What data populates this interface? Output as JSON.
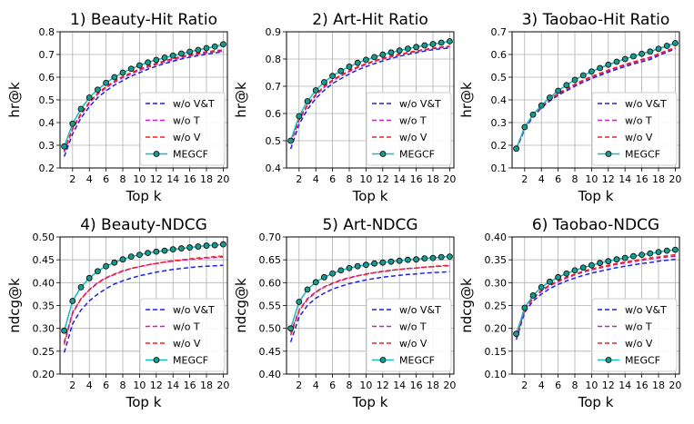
{
  "chart_data": [
    {
      "type": "line",
      "title": "1) Beauty-Hit Ratio",
      "xlabel": "Top k",
      "ylabel": "hr@k",
      "ylim": [
        0.2,
        0.8
      ],
      "yticks": [
        "0.2",
        "0.3",
        "0.4",
        "0.5",
        "0.6",
        "0.7",
        "0.8"
      ],
      "xticks": [
        "2",
        "4",
        "6",
        "8",
        "10",
        "12",
        "14",
        "16",
        "18",
        "20"
      ],
      "x": [
        1,
        2,
        3,
        4,
        5,
        6,
        7,
        8,
        9,
        10,
        11,
        12,
        13,
        14,
        15,
        16,
        17,
        18,
        19,
        20
      ],
      "legend_position": "lower-right",
      "series": [
        {
          "name": "w/o V&T",
          "color": "#1f1fe0",
          "style": "dashed",
          "values": [
            0.25,
            0.35,
            0.42,
            0.47,
            0.51,
            0.54,
            0.565,
            0.585,
            0.605,
            0.62,
            0.635,
            0.648,
            0.66,
            0.67,
            0.68,
            0.688,
            0.695,
            0.701,
            0.707,
            0.712
          ]
        },
        {
          "name": "w/o T",
          "color": "#c020c0",
          "style": "dashed",
          "values": [
            0.27,
            0.37,
            0.435,
            0.485,
            0.525,
            0.553,
            0.577,
            0.598,
            0.615,
            0.63,
            0.644,
            0.656,
            0.667,
            0.677,
            0.686,
            0.694,
            0.701,
            0.707,
            0.712,
            0.715
          ]
        },
        {
          "name": "w/o V",
          "color": "#ee2020",
          "style": "dashed",
          "values": [
            0.275,
            0.375,
            0.44,
            0.49,
            0.53,
            0.558,
            0.582,
            0.603,
            0.62,
            0.635,
            0.649,
            0.661,
            0.672,
            0.682,
            0.691,
            0.699,
            0.706,
            0.712,
            0.717,
            0.72
          ]
        },
        {
          "name": "MEGCF",
          "color": "#17bcbc",
          "style": "solid-marker",
          "values": [
            0.295,
            0.395,
            0.46,
            0.51,
            0.545,
            0.575,
            0.6,
            0.62,
            0.637,
            0.652,
            0.665,
            0.676,
            0.686,
            0.695,
            0.704,
            0.712,
            0.72,
            0.728,
            0.735,
            0.745
          ]
        }
      ]
    },
    {
      "type": "line",
      "title": "2) Art-Hit Ratio",
      "xlabel": "Top k",
      "ylabel": "hr@k",
      "ylim": [
        0.4,
        0.9
      ],
      "yticks": [
        "0.4",
        "0.5",
        "0.6",
        "0.7",
        "0.8",
        "0.9"
      ],
      "xticks": [
        "2",
        "4",
        "6",
        "8",
        "10",
        "12",
        "14",
        "16",
        "18",
        "20"
      ],
      "x": [
        1,
        2,
        3,
        4,
        5,
        6,
        7,
        8,
        9,
        10,
        11,
        12,
        13,
        14,
        15,
        16,
        17,
        18,
        19,
        20
      ],
      "legend_position": "lower-right",
      "series": [
        {
          "name": "w/o V&T",
          "color": "#1f1fe0",
          "style": "dashed",
          "values": [
            0.47,
            0.56,
            0.615,
            0.655,
            0.685,
            0.71,
            0.728,
            0.745,
            0.76,
            0.772,
            0.783,
            0.793,
            0.802,
            0.81,
            0.817,
            0.823,
            0.829,
            0.834,
            0.838,
            0.84
          ]
        },
        {
          "name": "w/o T",
          "color": "#c020c0",
          "style": "dashed",
          "values": [
            0.49,
            0.575,
            0.628,
            0.666,
            0.696,
            0.72,
            0.738,
            0.754,
            0.768,
            0.78,
            0.791,
            0.8,
            0.808,
            0.815,
            0.822,
            0.828,
            0.833,
            0.838,
            0.842,
            0.845
          ]
        },
        {
          "name": "w/o V",
          "color": "#ee2020",
          "style": "dashed",
          "values": [
            0.495,
            0.58,
            0.632,
            0.67,
            0.7,
            0.723,
            0.741,
            0.757,
            0.771,
            0.783,
            0.793,
            0.802,
            0.81,
            0.818,
            0.824,
            0.83,
            0.835,
            0.84,
            0.844,
            0.847
          ]
        },
        {
          "name": "MEGCF",
          "color": "#17bcbc",
          "style": "solid-marker",
          "values": [
            0.5,
            0.59,
            0.645,
            0.685,
            0.715,
            0.738,
            0.756,
            0.772,
            0.786,
            0.797,
            0.807,
            0.816,
            0.824,
            0.831,
            0.838,
            0.844,
            0.85,
            0.855,
            0.86,
            0.865
          ]
        }
      ]
    },
    {
      "type": "line",
      "title": "3) Taobao-Hit Ratio",
      "xlabel": "Top k",
      "ylabel": "hr@k",
      "ylim": [
        0.1,
        0.7
      ],
      "yticks": [
        "0.1",
        "0.2",
        "0.3",
        "0.4",
        "0.5",
        "0.6",
        "0.7"
      ],
      "xticks": [
        "2",
        "4",
        "6",
        "8",
        "10",
        "12",
        "14",
        "16",
        "18",
        "20"
      ],
      "x": [
        1,
        2,
        3,
        4,
        5,
        6,
        7,
        8,
        9,
        10,
        11,
        12,
        13,
        14,
        15,
        16,
        17,
        18,
        19,
        20
      ],
      "legend_position": "lower-right",
      "series": [
        {
          "name": "w/o V&T",
          "color": "#1f1fe0",
          "style": "dashed",
          "values": [
            0.18,
            0.27,
            0.325,
            0.365,
            0.395,
            0.42,
            0.44,
            0.46,
            0.478,
            0.494,
            0.508,
            0.522,
            0.535,
            0.547,
            0.558,
            0.568,
            0.578,
            0.595,
            0.61,
            0.625
          ]
        },
        {
          "name": "w/o T",
          "color": "#c020c0",
          "style": "dashed",
          "values": [
            0.185,
            0.275,
            0.33,
            0.37,
            0.4,
            0.425,
            0.446,
            0.466,
            0.484,
            0.5,
            0.514,
            0.528,
            0.541,
            0.553,
            0.564,
            0.575,
            0.585,
            0.6,
            0.615,
            0.628
          ]
        },
        {
          "name": "w/o V",
          "color": "#ee2020",
          "style": "dashed",
          "values": [
            0.185,
            0.277,
            0.332,
            0.372,
            0.403,
            0.428,
            0.449,
            0.469,
            0.487,
            0.503,
            0.517,
            0.531,
            0.544,
            0.556,
            0.567,
            0.578,
            0.588,
            0.603,
            0.618,
            0.63
          ]
        },
        {
          "name": "MEGCF",
          "color": "#17bcbc",
          "style": "solid-marker",
          "values": [
            0.185,
            0.28,
            0.335,
            0.375,
            0.41,
            0.44,
            0.465,
            0.488,
            0.508,
            0.525,
            0.54,
            0.555,
            0.568,
            0.58,
            0.592,
            0.603,
            0.613,
            0.625,
            0.638,
            0.65
          ]
        }
      ]
    },
    {
      "type": "line",
      "title": "4) Beauty-NDCG",
      "xlabel": "Top k",
      "ylabel": "ndcg@k",
      "ylim": [
        0.2,
        0.5
      ],
      "yticks": [
        "0.20",
        "0.25",
        "0.30",
        "0.35",
        "0.40",
        "0.45",
        "0.50"
      ],
      "xticks": [
        "2",
        "4",
        "6",
        "8",
        "10",
        "12",
        "14",
        "16",
        "18",
        "20"
      ],
      "x": [
        1,
        2,
        3,
        4,
        5,
        6,
        7,
        8,
        9,
        10,
        11,
        12,
        13,
        14,
        15,
        16,
        17,
        18,
        19,
        20
      ],
      "legend_position": "lower-right",
      "series": [
        {
          "name": "w/o V&T",
          "color": "#1f1fe0",
          "style": "dashed",
          "values": [
            0.247,
            0.31,
            0.34,
            0.36,
            0.375,
            0.387,
            0.397,
            0.404,
            0.41,
            0.415,
            0.419,
            0.423,
            0.426,
            0.429,
            0.431,
            0.433,
            0.435,
            0.436,
            0.437,
            0.438
          ]
        },
        {
          "name": "w/o T",
          "color": "#c020c0",
          "style": "dashed",
          "values": [
            0.27,
            0.335,
            0.365,
            0.385,
            0.4,
            0.411,
            0.419,
            0.426,
            0.431,
            0.435,
            0.439,
            0.442,
            0.445,
            0.447,
            0.449,
            0.451,
            0.452,
            0.454,
            0.455,
            0.456
          ]
        },
        {
          "name": "w/o V",
          "color": "#ee2020",
          "style": "dashed",
          "values": [
            0.265,
            0.333,
            0.364,
            0.384,
            0.399,
            0.41,
            0.418,
            0.425,
            0.431,
            0.435,
            0.439,
            0.442,
            0.445,
            0.448,
            0.45,
            0.452,
            0.454,
            0.455,
            0.457,
            0.458
          ]
        },
        {
          "name": "MEGCF",
          "color": "#17bcbc",
          "style": "solid-marker",
          "values": [
            0.295,
            0.36,
            0.39,
            0.41,
            0.425,
            0.436,
            0.444,
            0.451,
            0.457,
            0.461,
            0.465,
            0.468,
            0.47,
            0.473,
            0.475,
            0.477,
            0.479,
            0.481,
            0.482,
            0.484
          ]
        }
      ]
    },
    {
      "type": "line",
      "title": "5) Art-NDCG",
      "xlabel": "Top k",
      "ylabel": "ndcg@k",
      "ylim": [
        0.4,
        0.7
      ],
      "yticks": [
        "0.40",
        "0.45",
        "0.50",
        "0.55",
        "0.60",
        "0.65",
        "0.70"
      ],
      "xticks": [
        "2",
        "4",
        "6",
        "8",
        "10",
        "12",
        "14",
        "16",
        "18",
        "20"
      ],
      "x": [
        1,
        2,
        3,
        4,
        5,
        6,
        7,
        8,
        9,
        10,
        11,
        12,
        13,
        14,
        15,
        16,
        17,
        18,
        19,
        20
      ],
      "legend_position": "lower-right",
      "series": [
        {
          "name": "w/o V&T",
          "color": "#1f1fe0",
          "style": "dashed",
          "values": [
            0.47,
            0.525,
            0.55,
            0.566,
            0.577,
            0.586,
            0.592,
            0.598,
            0.602,
            0.606,
            0.609,
            0.612,
            0.614,
            0.616,
            0.618,
            0.619,
            0.621,
            0.622,
            0.623,
            0.624
          ]
        },
        {
          "name": "w/o T",
          "color": "#c020c0",
          "style": "dashed",
          "values": [
            0.49,
            0.54,
            0.565,
            0.58,
            0.591,
            0.599,
            0.606,
            0.611,
            0.615,
            0.619,
            0.622,
            0.625,
            0.627,
            0.629,
            0.631,
            0.632,
            0.634,
            0.635,
            0.636,
            0.637
          ]
        },
        {
          "name": "w/o V",
          "color": "#ee2020",
          "style": "dashed",
          "values": [
            0.485,
            0.538,
            0.563,
            0.579,
            0.59,
            0.598,
            0.605,
            0.61,
            0.615,
            0.618,
            0.622,
            0.624,
            0.627,
            0.629,
            0.631,
            0.632,
            0.634,
            0.635,
            0.637,
            0.638
          ]
        },
        {
          "name": "MEGCF",
          "color": "#17bcbc",
          "style": "solid-marker",
          "values": [
            0.5,
            0.558,
            0.585,
            0.601,
            0.612,
            0.62,
            0.627,
            0.632,
            0.636,
            0.639,
            0.642,
            0.644,
            0.646,
            0.648,
            0.65,
            0.651,
            0.653,
            0.654,
            0.656,
            0.657
          ]
        }
      ]
    },
    {
      "type": "line",
      "title": "6) Taobao-NDCG",
      "xlabel": "Top k",
      "ylabel": "ndcg@k",
      "ylim": [
        0.1,
        0.4
      ],
      "yticks": [
        "0.10",
        "0.15",
        "0.20",
        "0.25",
        "0.30",
        "0.35",
        "0.40"
      ],
      "xticks": [
        "2",
        "4",
        "6",
        "8",
        "10",
        "12",
        "14",
        "16",
        "18",
        "20"
      ],
      "x": [
        1,
        2,
        3,
        4,
        5,
        6,
        7,
        8,
        9,
        10,
        11,
        12,
        13,
        14,
        15,
        16,
        17,
        18,
        19,
        20
      ],
      "legend_position": "lower-right",
      "series": [
        {
          "name": "w/o V&T",
          "color": "#1f1fe0",
          "style": "dashed",
          "values": [
            0.175,
            0.235,
            0.26,
            0.275,
            0.287,
            0.296,
            0.304,
            0.31,
            0.316,
            0.321,
            0.325,
            0.329,
            0.333,
            0.336,
            0.339,
            0.342,
            0.344,
            0.347,
            0.349,
            0.351
          ]
        },
        {
          "name": "w/o T",
          "color": "#c020c0",
          "style": "dashed",
          "values": [
            0.18,
            0.24,
            0.265,
            0.281,
            0.293,
            0.302,
            0.31,
            0.317,
            0.323,
            0.328,
            0.332,
            0.336,
            0.34,
            0.343,
            0.346,
            0.349,
            0.352,
            0.354,
            0.356,
            0.358
          ]
        },
        {
          "name": "w/o V",
          "color": "#ee2020",
          "style": "dashed",
          "values": [
            0.182,
            0.242,
            0.267,
            0.283,
            0.295,
            0.304,
            0.312,
            0.319,
            0.325,
            0.33,
            0.334,
            0.338,
            0.342,
            0.345,
            0.348,
            0.351,
            0.354,
            0.356,
            0.359,
            0.361
          ]
        },
        {
          "name": "MEGCF",
          "color": "#17bcbc",
          "style": "solid-marker",
          "values": [
            0.188,
            0.245,
            0.272,
            0.29,
            0.302,
            0.312,
            0.32,
            0.327,
            0.333,
            0.338,
            0.343,
            0.347,
            0.351,
            0.354,
            0.358,
            0.361,
            0.364,
            0.367,
            0.37,
            0.372
          ]
        }
      ]
    }
  ]
}
